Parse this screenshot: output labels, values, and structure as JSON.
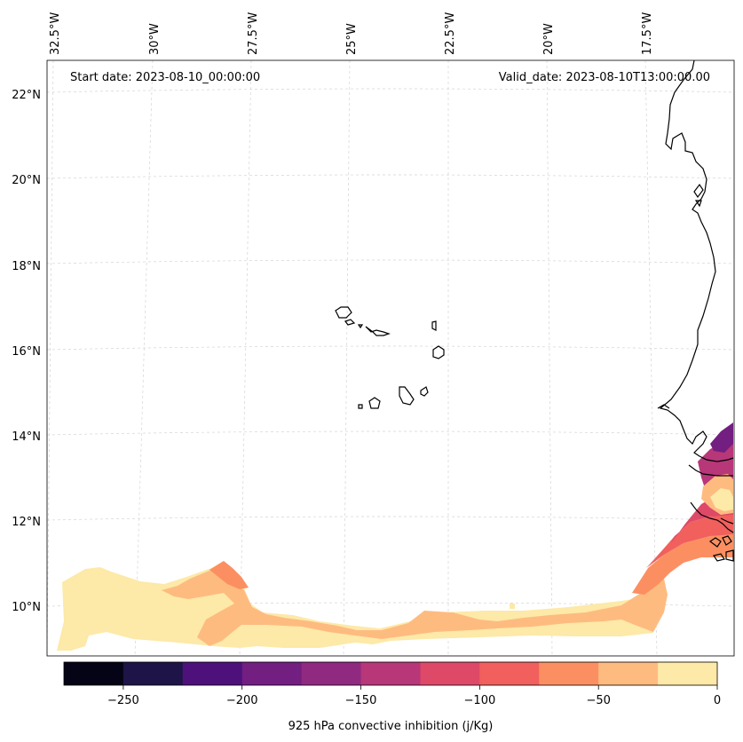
{
  "header": {
    "start_date": "Start date: 2023-08-10_00:00:00",
    "valid_date": "Valid_date: 2023-08-10T13:00:00.00"
  },
  "axes": {
    "lon_labels": [
      "32.5°W",
      "30°W",
      "27.5°W",
      "25°W",
      "22.5°W",
      "20°W",
      "17.5°W"
    ],
    "lat_labels": [
      "22°N",
      "20°N",
      "18°N",
      "16°N",
      "14°N",
      "12°N",
      "10°N"
    ]
  },
  "colorbar": {
    "title": "925 hPa convective inhibition (j/Kg)",
    "tick_labels": [
      "−250",
      "−200",
      "−150",
      "−100",
      "−50",
      "0"
    ],
    "colors": [
      "#050416",
      "#1f1447",
      "#4e117c",
      "#721f81",
      "#902a80",
      "#b73779",
      "#de4968",
      "#f1605d",
      "#fc8f61",
      "#febb80",
      "#fde9a8"
    ]
  },
  "legend_colors": {
    "cin_0": "#fde9a8",
    "cin_25": "#febb80",
    "cin_50": "#fc8f61",
    "cin_75": "#f1605d",
    "cin_100": "#de4968",
    "cin_125": "#b73779",
    "cin_175": "#721f81",
    "coast": "#000000",
    "grid": "#d0d0d0"
  }
}
